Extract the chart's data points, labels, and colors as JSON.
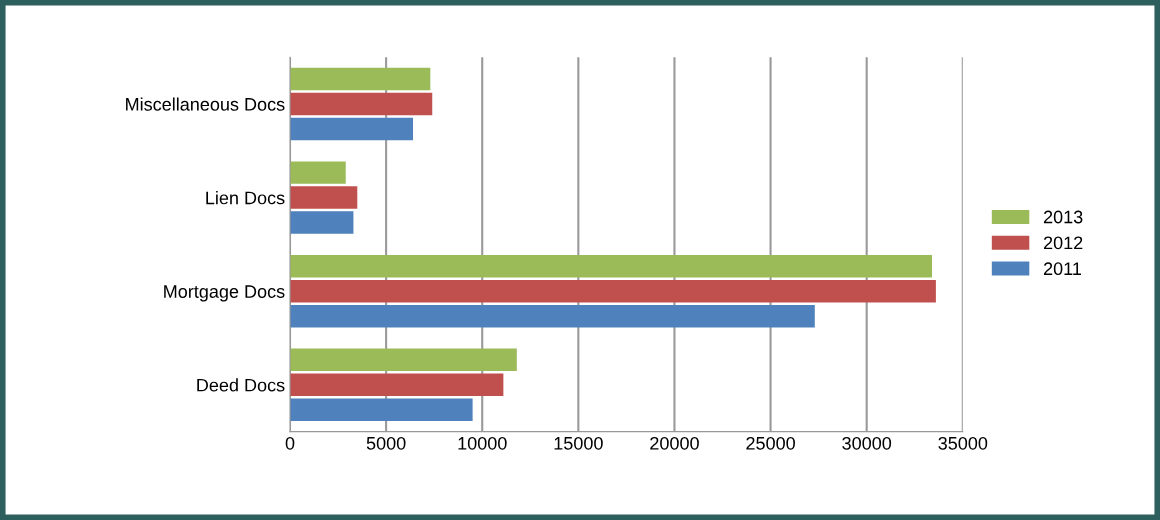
{
  "chart_data": {
    "type": "bar",
    "orientation": "horizontal",
    "categories": [
      "Miscellaneous Docs",
      "Lien Docs",
      "Mortgage Docs",
      "Deed Docs"
    ],
    "series": [
      {
        "name": "2013",
        "color": "#9bbb59",
        "values": [
          7300,
          2900,
          33400,
          11800
        ]
      },
      {
        "name": "2012",
        "color": "#c0504d",
        "values": [
          7400,
          3500,
          33600,
          11100
        ]
      },
      {
        "name": "2011",
        "color": "#4f81bd",
        "values": [
          6400,
          3300,
          27300,
          9500
        ]
      }
    ],
    "xlim": [
      0,
      35000
    ],
    "xticks": [
      0,
      5000,
      10000,
      15000,
      20000,
      25000,
      30000,
      35000
    ],
    "grid": "x",
    "legend": "right"
  }
}
